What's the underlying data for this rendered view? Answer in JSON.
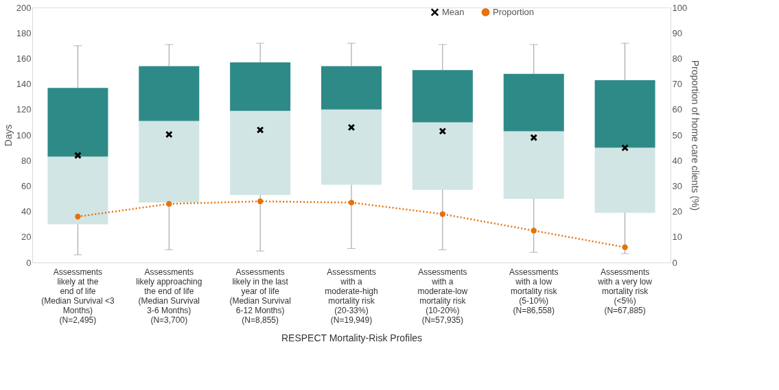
{
  "chart_data": {
    "type": "box",
    "categories": [
      "Assessments\nlikely at the\nend of life\n(Median Survival <3\nMonths)\n(N=2,495)",
      "Assessments\nlikely approaching\nthe end of life\n(Median Survival\n3-6 Months)\n(N=3,700)",
      "Assessments\nlikely in the last\nyear of life\n(Median Survival\n6-12 Months)\n(N=8,855)",
      "Assessments\nwith a\nmoderate-high\nmortality risk\n(20-33%)\n(N=19,949)",
      "Assessments\nwith a\nmoderate-low\nmortality risk\n(10-20%)\n(N=57,935)",
      "Assessments\nwith a low\nmortality risk\n(5-10%)\n(N=86,558)",
      "Assessments\nwith a very low\nmortality risk\n(<5%)\n(N=67,885)"
    ],
    "boxes": [
      {
        "low": 6,
        "q1": 30,
        "median": 83,
        "q3": 137,
        "high": 170
      },
      {
        "low": 10,
        "q1": 47,
        "median": 111,
        "q3": 154,
        "high": 171
      },
      {
        "low": 9,
        "q1": 53,
        "median": 119,
        "q3": 157,
        "high": 172
      },
      {
        "low": 11,
        "q1": 61,
        "median": 120,
        "q3": 154,
        "high": 172
      },
      {
        "low": 10,
        "q1": 57,
        "median": 110,
        "q3": 151,
        "high": 171
      },
      {
        "low": 8,
        "q1": 50,
        "median": 103,
        "q3": 148,
        "high": 171
      },
      {
        "low": 7,
        "q1": 39,
        "median": 90,
        "q3": 143,
        "high": 172
      }
    ],
    "colors": [
      "#2e8a87",
      "#2e8a87",
      "#2e8a87",
      "#2e8a87",
      "#2e8a87",
      "#2e8a87",
      "#2e8a87"
    ],
    "series": [
      {
        "name": "Mean",
        "type": "scatter",
        "marker": "cross",
        "color": "#000000",
        "values": [
          84,
          100.5,
          104,
          106,
          103,
          98,
          90
        ]
      },
      {
        "name": "Proportion",
        "type": "line",
        "axis": "y2",
        "marker": "circle",
        "line_style": "dotted",
        "color": "#e8710a",
        "values": [
          18,
          23,
          24,
          23.5,
          19,
          12.5,
          6
        ]
      }
    ],
    "ylim": [
      0,
      200
    ],
    "yticks": [
      0,
      20,
      40,
      60,
      80,
      100,
      120,
      140,
      160,
      180,
      200
    ],
    "y2lim": [
      0,
      100
    ],
    "y2ticks": [
      0,
      10,
      20,
      30,
      40,
      50,
      60,
      70,
      80,
      90,
      100
    ],
    "ylabel": "Days",
    "y2label": "Proportion of home care clients (%)",
    "xlabel": "RESPECT Mortality-Risk Profiles",
    "grid": false,
    "legend": "top"
  }
}
